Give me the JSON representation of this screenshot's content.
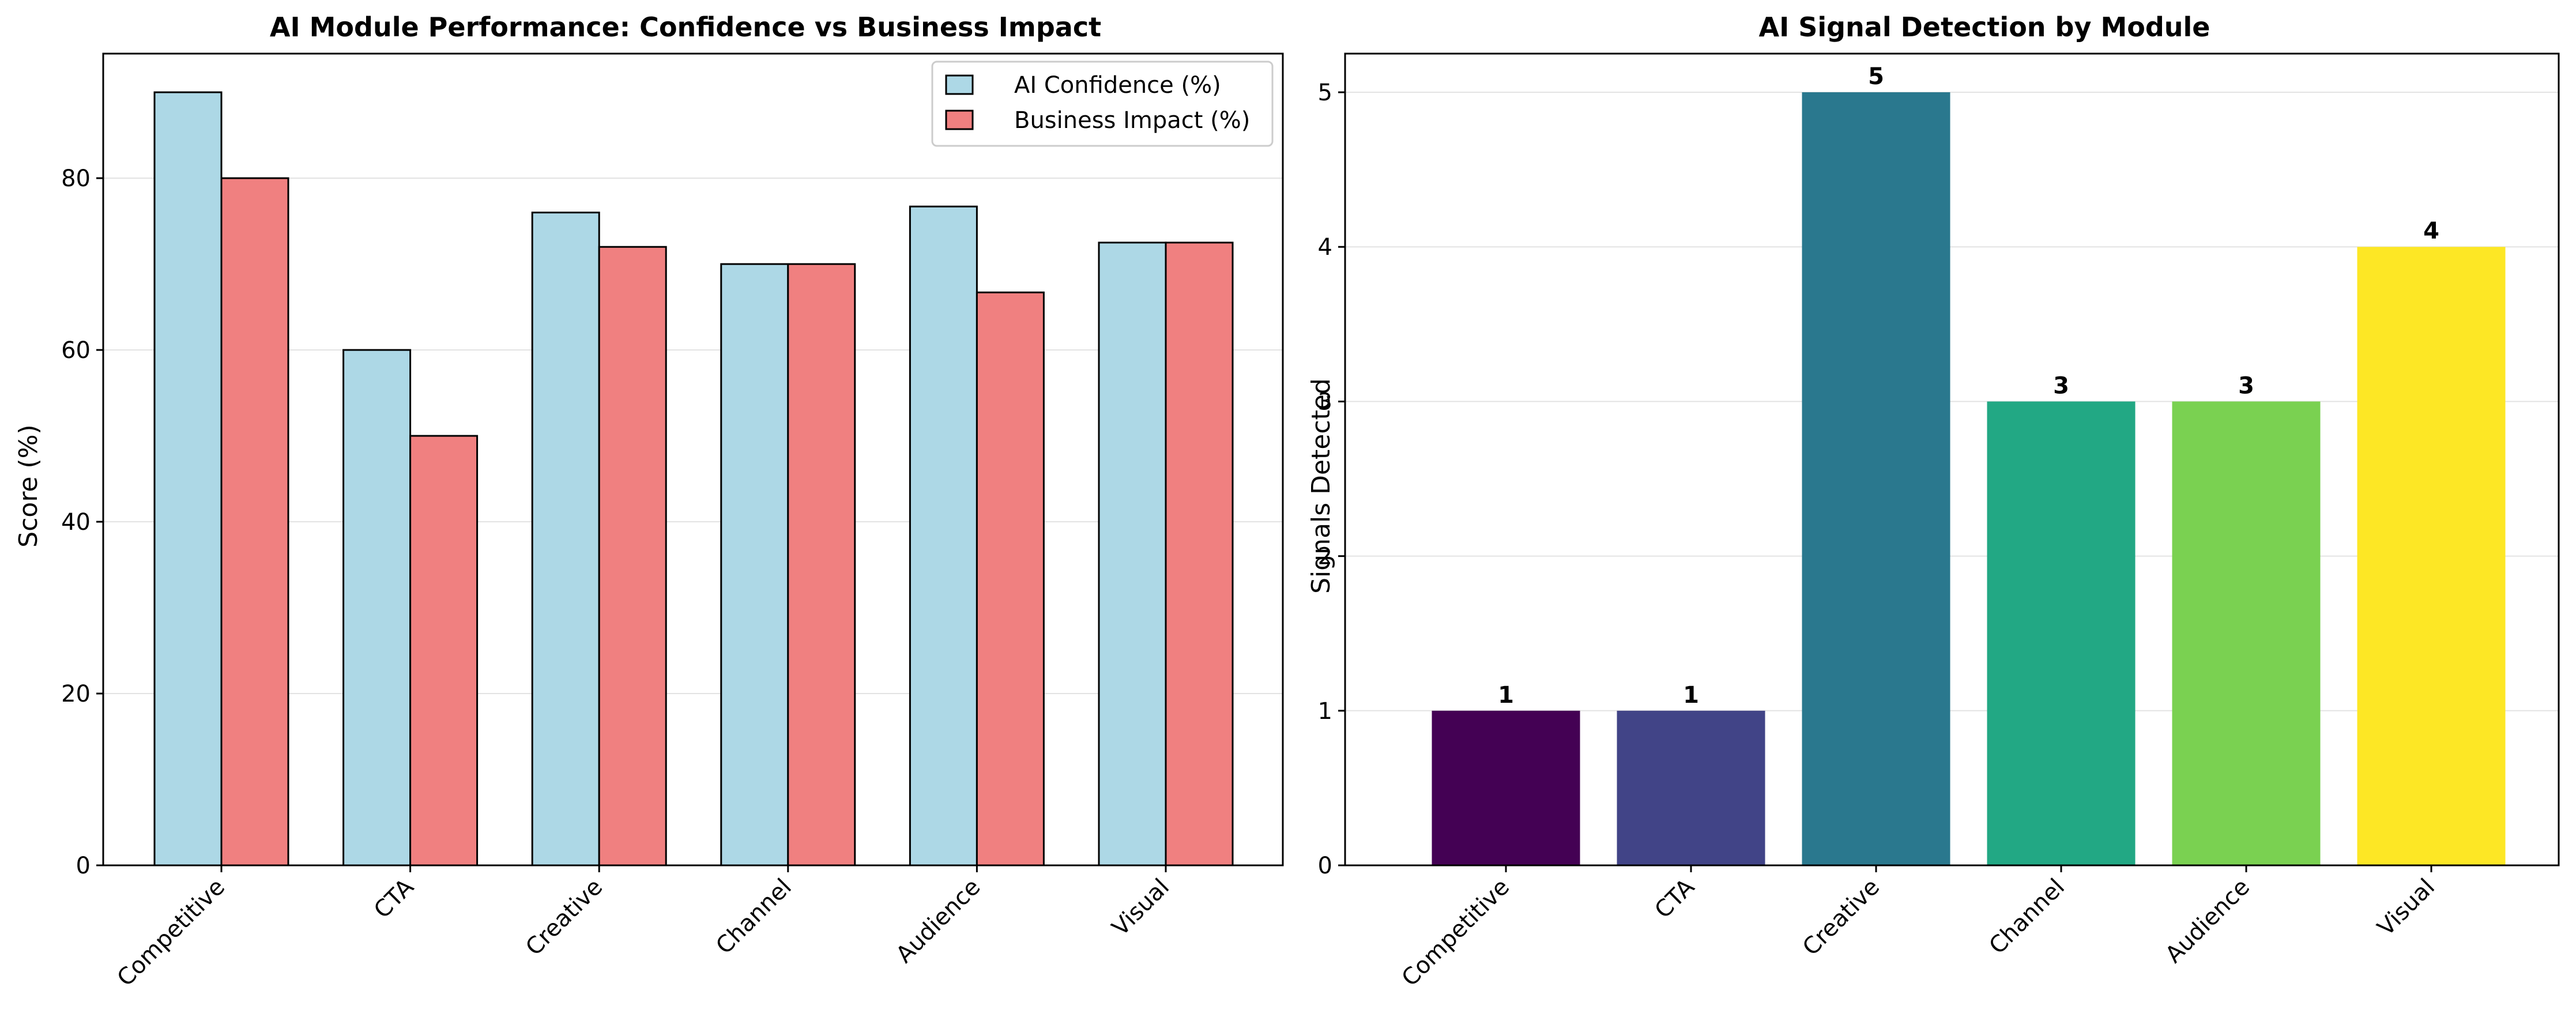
{
  "chart_data": [
    {
      "type": "bar",
      "title": "AI Module Performance: Confidence vs Business Impact",
      "xlabel": "",
      "ylabel": "Score (%)",
      "categories": [
        "Competitive",
        "CTA",
        "Creative",
        "Channel",
        "Audience",
        "Visual"
      ],
      "series": [
        {
          "name": "AI Confidence (%)",
          "values": [
            90,
            60,
            76,
            70,
            76.7,
            72.5
          ],
          "color": "#add8e6"
        },
        {
          "name": "Business Impact (%)",
          "values": [
            80,
            50,
            72,
            70,
            66.7,
            72.5
          ],
          "color": "#f08080"
        }
      ],
      "ylim": [
        0,
        94.5
      ],
      "yticks": [
        0,
        20,
        40,
        60,
        80
      ],
      "grid": "y",
      "legend": "top-right"
    },
    {
      "type": "bar",
      "title": "AI Signal Detection by Module",
      "xlabel": "",
      "ylabel": "Signals Detected",
      "categories": [
        "Competitive",
        "CTA",
        "Creative",
        "Channel",
        "Audience",
        "Visual"
      ],
      "values": [
        1,
        1,
        5,
        3,
        3,
        4
      ],
      "colors": [
        "#440154",
        "#414487",
        "#2a788e",
        "#22a884",
        "#7ad151",
        "#fde725"
      ],
      "ylim": [
        0,
        5.25
      ],
      "yticks": [
        0,
        1,
        2,
        3,
        4,
        5
      ],
      "grid": "y",
      "data_labels": true
    }
  ]
}
